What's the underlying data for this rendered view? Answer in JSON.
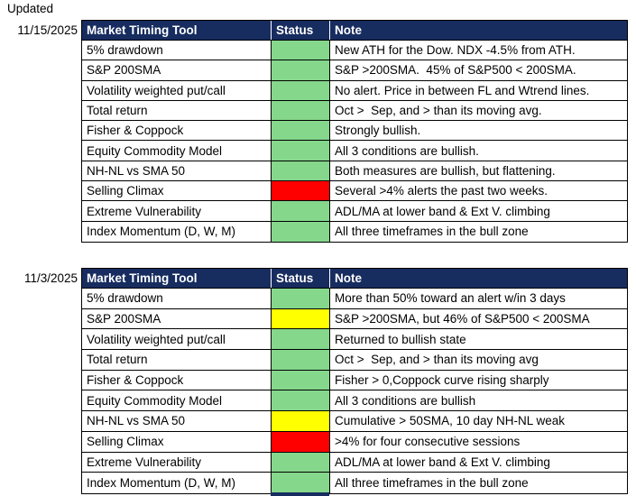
{
  "page": {
    "updated_label": "Updated"
  },
  "colors": {
    "header_bg": "#172C5F",
    "header_text": "#FFFFFF",
    "gridline": "#FFFFFF",
    "green": "#85D78C",
    "yellow": "#FFFF00",
    "red": "#FF0000"
  },
  "columns": [
    "Market Timing Tool",
    "Status",
    "Note"
  ],
  "tables": [
    {
      "date": "11/15/2025",
      "rows": [
        {
          "tool": "5% drawdown",
          "status": "green",
          "note": "New ATH for the Dow. NDX -4.5% from ATH."
        },
        {
          "tool": "S&P 200SMA",
          "status": "green",
          "note": "S&P >200SMA.  45% of S&P500 < 200SMA."
        },
        {
          "tool": "Volatility weighted put/call",
          "status": "green",
          "note": "No alert. Price in between FL and Wtrend lines."
        },
        {
          "tool": "Total return",
          "status": "green",
          "note": "Oct >  Sep, and > than its moving avg."
        },
        {
          "tool": "Fisher & Coppock",
          "status": "green",
          "note": "Strongly bullish."
        },
        {
          "tool": "Equity Commodity Model",
          "status": "green",
          "note": "All 3 conditions are bullish."
        },
        {
          "tool": "NH-NL vs SMA 50",
          "status": "green",
          "note": "Both measures are bullish, but flattening."
        },
        {
          "tool": "Selling Climax",
          "status": "red",
          "note": "Several >4% alerts the past two weeks."
        },
        {
          "tool": "Extreme Vulnerability",
          "status": "green",
          "note": "ADL/MA at lower band & Ext V. climbing"
        },
        {
          "tool": "Index Momentum (D, W, M)",
          "status": "green",
          "note": "All three timeframes in the bull zone"
        }
      ]
    },
    {
      "date": "11/3/2025",
      "rows": [
        {
          "tool": "5% drawdown",
          "status": "green",
          "note": "More than 50% toward an alert w/in 3 days"
        },
        {
          "tool": "S&P 200SMA",
          "status": "yellow",
          "note": "S&P >200SMA, but 46% of S&P500 < 200SMA"
        },
        {
          "tool": "Volatility weighted put/call",
          "status": "green",
          "note": "Returned to bullish state"
        },
        {
          "tool": "Total return",
          "status": "green",
          "note": "Oct >  Sep, and > than its moving avg"
        },
        {
          "tool": "Fisher & Coppock",
          "status": "green",
          "note": "Fisher > 0,Coppock curve rising sharply"
        },
        {
          "tool": "Equity Commodity Model",
          "status": "green",
          "note": "All 3 conditions are bullish"
        },
        {
          "tool": "NH-NL vs SMA 50",
          "status": "yellow",
          "note": "Cumulative > 50SMA, 10 day NH-NL weak"
        },
        {
          "tool": "Selling Climax",
          "status": "red",
          "note": ">4% for four consecutive sessions"
        },
        {
          "tool": "Extreme Vulnerability",
          "status": "green",
          "note": "ADL/MA at lower band & Ext V. climbing"
        },
        {
          "tool": "Index Momentum (D, W, M)",
          "status": "green",
          "note": "All three timeframes in the bull zone"
        }
      ]
    }
  ]
}
